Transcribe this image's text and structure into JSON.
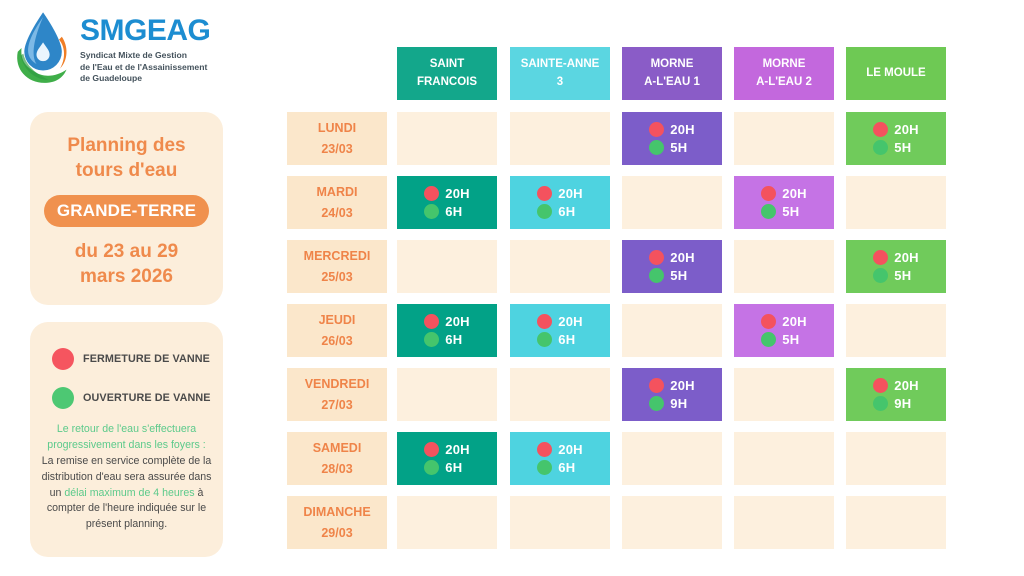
{
  "logo": {
    "name": "SMGEAG",
    "tagline": [
      "Syndicat Mixte de Gestion",
      "de l'Eau et de l'Assainissement",
      "de Guadeloupe"
    ],
    "brand_blue": "#1C8DD1"
  },
  "info_panel": {
    "title": [
      "Planning des",
      "tours d'eau"
    ],
    "region_badge": "GRANDE-TERRE",
    "period": [
      "du 23 au 29",
      "mars 2026"
    ],
    "accent_color": "#EF8A4C",
    "badge_color": "#F0914E"
  },
  "legend": {
    "items": [
      {
        "label": "FERMETURE DE VANNE",
        "color": "#F5555F"
      },
      {
        "label": "OUVERTURE DE VANNE",
        "color": "#4DC873"
      }
    ],
    "note_segments": [
      {
        "text": "Le retour de l'eau s'effectuera progressivement dans les foyers :",
        "emphasis": true,
        "block": true
      },
      {
        "text": "La remise en service complète de la distribution d'eau sera assurée dans un ",
        "emphasis": false,
        "block": false
      },
      {
        "text": "délai maximum de 4 heures",
        "emphasis": true,
        "block": false
      },
      {
        "text": " à compter de l'heure indiquée sur le présent planning.",
        "emphasis": false,
        "block": false
      }
    ],
    "emphasis_color": "#5CCA8B",
    "text_color": "#4A4A4A"
  },
  "schedule": {
    "close_dot_color": "#F4525E",
    "open_dot_color": "#45C56C",
    "empty_cell_color": "#FDF0DE",
    "day_cell_color": "#FBE7CB",
    "columns": [
      {
        "label_lines": [
          "SAINT",
          "FRANCOIS"
        ],
        "header_color": "#13A78B",
        "cell_color": "#02A287"
      },
      {
        "label_lines": [
          "SAINTE-ANNE",
          "3"
        ],
        "header_color": "#5BD6E1",
        "cell_color": "#4ED3E0"
      },
      {
        "label_lines": [
          "MORNE",
          "A-L'EAU 1"
        ],
        "header_color": "#8A5CC7",
        "cell_color": "#7C5DC9"
      },
      {
        "label_lines": [
          "MORNE",
          "A-L'EAU 2"
        ],
        "header_color": "#C368DD",
        "cell_color": "#C573E5"
      },
      {
        "label_lines": [
          "LE MOULE"
        ],
        "header_color": "#6EC954",
        "cell_color": "#70CB5B"
      }
    ],
    "rows": [
      {
        "day": "LUNDI",
        "date": "23/03",
        "cells": [
          null,
          null,
          {
            "close": "20H",
            "open": "5H"
          },
          null,
          {
            "close": "20H",
            "open": "5H"
          }
        ]
      },
      {
        "day": "MARDI",
        "date": "24/03",
        "cells": [
          {
            "close": "20H",
            "open": "6H"
          },
          {
            "close": "20H",
            "open": "6H"
          },
          null,
          {
            "close": "20H",
            "open": "5H"
          },
          null
        ]
      },
      {
        "day": "MERCREDI",
        "date": "25/03",
        "cells": [
          null,
          null,
          {
            "close": "20H",
            "open": "5H"
          },
          null,
          {
            "close": "20H",
            "open": "5H"
          }
        ]
      },
      {
        "day": "JEUDI",
        "date": "26/03",
        "cells": [
          {
            "close": "20H",
            "open": "6H"
          },
          {
            "close": "20H",
            "open": "6H"
          },
          null,
          {
            "close": "20H",
            "open": "5H"
          },
          null
        ]
      },
      {
        "day": "VENDREDI",
        "date": "27/03",
        "cells": [
          null,
          null,
          {
            "close": "20H",
            "open": "9H"
          },
          null,
          {
            "close": "20H",
            "open": "9H"
          }
        ]
      },
      {
        "day": "SAMEDI",
        "date": "28/03",
        "cells": [
          {
            "close": "20H",
            "open": "6H"
          },
          {
            "close": "20H",
            "open": "6H"
          },
          null,
          null,
          null
        ]
      },
      {
        "day": "DIMANCHE",
        "date": "29/03",
        "cells": [
          null,
          null,
          null,
          null,
          null
        ]
      }
    ]
  }
}
